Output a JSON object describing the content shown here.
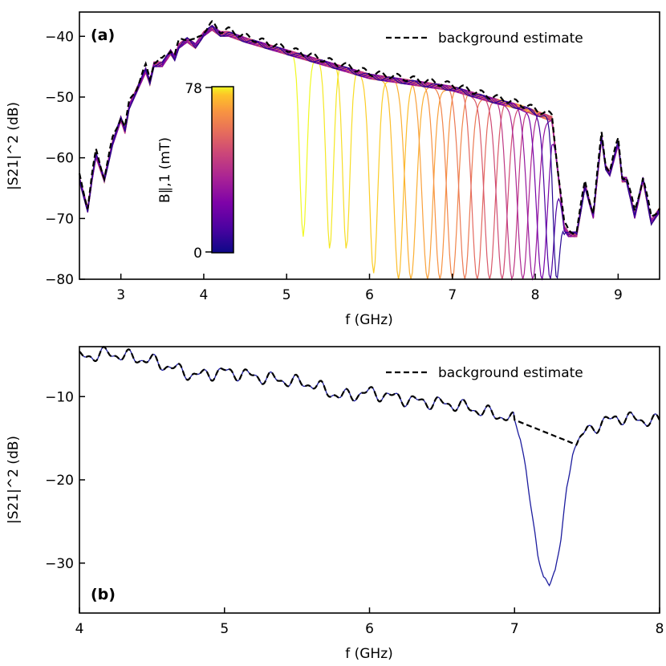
{
  "chart_data": [
    {
      "type": "line",
      "panel_label": "(a)",
      "xlabel": "f (GHz)",
      "ylabel": "|S21|^2 (dB)",
      "xlim": [
        2.5,
        9.5
      ],
      "ylim": [
        -80,
        -36
      ],
      "xticks": [
        3,
        4,
        5,
        6,
        7,
        8,
        9
      ],
      "yticks": [
        -40,
        -50,
        -60,
        -70,
        -80
      ],
      "legend": {
        "label": "background estimate",
        "style": "dashed",
        "color": "#000000",
        "position": "top-right"
      },
      "colorbar": {
        "label": "B∥,1 (mT)",
        "min": 0,
        "max": 78,
        "colormap": "plasma",
        "position": "inset-left"
      },
      "background": {
        "x": [
          2.5,
          2.6,
          2.65,
          2.7,
          2.8,
          2.9,
          3.0,
          3.05,
          3.1,
          3.2,
          3.3,
          3.35,
          3.4,
          3.5,
          3.6,
          3.65,
          3.7,
          3.8,
          3.9,
          4.0,
          4.1,
          4.2,
          4.3,
          4.5,
          5.0,
          5.5,
          6.0,
          6.5,
          7.0,
          7.5,
          7.8,
          8.0,
          8.2,
          8.3,
          8.35,
          8.4,
          8.5,
          8.6,
          8.7,
          8.8,
          8.85,
          8.9,
          9.0,
          9.05,
          9.1,
          9.2,
          9.3,
          9.4,
          9.5
        ],
        "y": [
          -63,
          -68,
          -63,
          -59,
          -63,
          -57,
          -53,
          -55,
          -51,
          -48,
          -45,
          -47,
          -44,
          -44,
          -42,
          -43,
          -41,
          -40,
          -41,
          -39,
          -38,
          -39,
          -39,
          -40,
          -42,
          -44,
          -46,
          -47,
          -48,
          -50,
          -51,
          -52,
          -53,
          -65,
          -71,
          -72,
          -72,
          -64,
          -69,
          -56,
          -61,
          -62,
          -57,
          -63,
          -63,
          -69,
          -63,
          -70,
          -68
        ]
      },
      "resonances": [
        {
          "field_mT": 78,
          "f0": 5.2,
          "depth": -73,
          "width": 0.06
        },
        {
          "field_mT": 75,
          "f0": 5.52,
          "depth": -75,
          "width": 0.06
        },
        {
          "field_mT": 73,
          "f0": 5.72,
          "depth": -75,
          "width": 0.06
        },
        {
          "field_mT": 70,
          "f0": 6.05,
          "depth": -79,
          "width": 0.07
        },
        {
          "field_mT": 67,
          "f0": 6.35,
          "depth": -80,
          "width": 0.08
        },
        {
          "field_mT": 64,
          "f0": 6.5,
          "depth": -80,
          "width": 0.09
        },
        {
          "field_mT": 61,
          "f0": 6.7,
          "depth": -80,
          "width": 0.09
        },
        {
          "field_mT": 58,
          "f0": 6.85,
          "depth": -80,
          "width": 0.09
        },
        {
          "field_mT": 55,
          "f0": 7.0,
          "depth": -80,
          "width": 0.09
        },
        {
          "field_mT": 52,
          "f0": 7.15,
          "depth": -80,
          "width": 0.09
        },
        {
          "field_mT": 48,
          "f0": 7.3,
          "depth": -80,
          "width": 0.09
        },
        {
          "field_mT": 44,
          "f0": 7.45,
          "depth": -80,
          "width": 0.09
        },
        {
          "field_mT": 40,
          "f0": 7.6,
          "depth": -80,
          "width": 0.09
        },
        {
          "field_mT": 35,
          "f0": 7.72,
          "depth": -80,
          "width": 0.09
        },
        {
          "field_mT": 30,
          "f0": 7.85,
          "depth": -80,
          "width": 0.09
        },
        {
          "field_mT": 25,
          "f0": 7.97,
          "depth": -80,
          "width": 0.09
        },
        {
          "field_mT": 18,
          "f0": 8.08,
          "depth": -80,
          "width": 0.09
        },
        {
          "field_mT": 10,
          "f0": 8.18,
          "depth": -80,
          "width": 0.08
        },
        {
          "field_mT": 4,
          "f0": 8.26,
          "depth": -80,
          "width": 0.06
        }
      ]
    },
    {
      "type": "line",
      "panel_label": "(b)",
      "xlabel": "f (GHz)",
      "ylabel": "|S21|^2 (dB)",
      "xlim": [
        4,
        8
      ],
      "ylim": [
        -36,
        -4
      ],
      "xticks": [
        4,
        5,
        6,
        7,
        8
      ],
      "yticks": [
        -10,
        -20,
        -30
      ],
      "legend": {
        "label": "background estimate",
        "style": "dashed",
        "color": "#000000",
        "position": "top-right"
      },
      "background": {
        "x": [
          4.0,
          4.2,
          4.5,
          4.8,
          5.0,
          5.3,
          5.6,
          5.8,
          6.0,
          6.3,
          6.6,
          6.9,
          7.0,
          7.43,
          7.5,
          7.7,
          8.0
        ],
        "y": [
          -5.3,
          -4.8,
          -5.7,
          -7.5,
          -7.0,
          -7.8,
          -8.5,
          -10.0,
          -9.5,
          -10.5,
          -11.0,
          -12.3,
          -12.8,
          -15.8,
          -14.0,
          -12.5,
          -13.0
        ]
      },
      "trace": {
        "color": "#1c1c9e",
        "dip": {
          "x": [
            7.0,
            7.04,
            7.08,
            7.12,
            7.16,
            7.2,
            7.24,
            7.28,
            7.32,
            7.36,
            7.4,
            7.43
          ],
          "y": [
            -13.0,
            -15.0,
            -19.0,
            -24.0,
            -29.0,
            -31.8,
            -32.5,
            -31.0,
            -27.0,
            -21.0,
            -17.0,
            -15.8
          ]
        }
      }
    }
  ]
}
